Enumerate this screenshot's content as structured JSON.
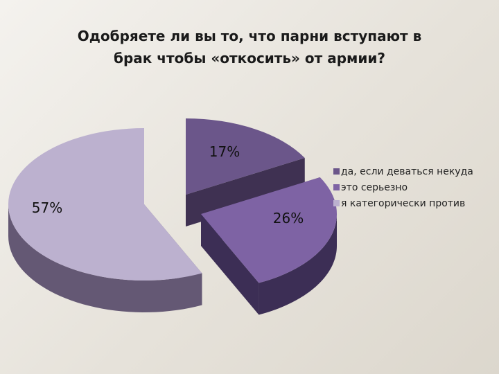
{
  "chart_data": {
    "type": "pie",
    "title_lines": [
      "Одобряете ли вы то, что парни вступают в",
      "брак чтобы «откосить» от армии?"
    ],
    "series": [
      {
        "label": "да, если деваться некуда",
        "value": 17,
        "data_label": "17%",
        "color": "#6b568a",
        "side_color": "#3f3152"
      },
      {
        "label": "это серьезно",
        "value": 26,
        "data_label": "26%",
        "color": "#7e63a4",
        "side_color": "#3c2e55"
      },
      {
        "label": "я категорически против",
        "value": 57,
        "data_label": "57%",
        "color": "#bcb1cf",
        "side_color": "#645874"
      }
    ],
    "legend_position": "right",
    "exploded": true,
    "style": "3d"
  }
}
